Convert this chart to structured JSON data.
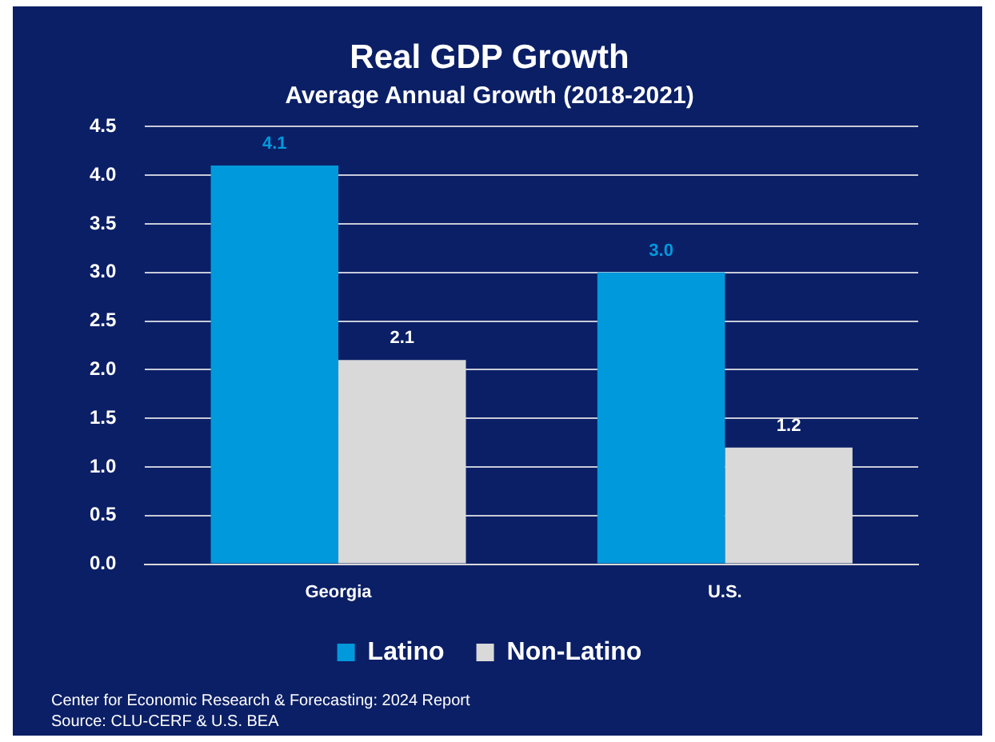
{
  "chart_data": {
    "type": "bar",
    "title": "Real GDP Growth",
    "subtitle": "Average Annual Growth (2018-2021)",
    "categories": [
      "Georgia",
      "U.S."
    ],
    "series": [
      {
        "name": "Latino",
        "color": "#0099dc",
        "values": [
          4.1,
          3.0
        ],
        "value_labels": [
          "4.1",
          "3.0"
        ]
      },
      {
        "name": "Non-Latino",
        "color": "#d9d9d9",
        "values": [
          2.1,
          1.2
        ],
        "value_labels": [
          "2.1",
          "1.2"
        ]
      }
    ],
    "ylim": [
      0,
      4.5
    ],
    "yticks": [
      {
        "value": 0,
        "label": "0.0"
      },
      {
        "value": 0.5,
        "label": "0.5"
      },
      {
        "value": 1,
        "label": "1.0"
      },
      {
        "value": 1.5,
        "label": "1.5"
      },
      {
        "value": 2,
        "label": "2.0"
      },
      {
        "value": 2.5,
        "label": "2.5"
      },
      {
        "value": 3,
        "label": "3.0"
      },
      {
        "value": 3.5,
        "label": "3.5"
      },
      {
        "value": 4,
        "label": "4.0"
      },
      {
        "value": 4.5,
        "label": "4.5"
      }
    ],
    "grid": "y",
    "legend": "bottom",
    "annotations": [
      "Center for Economic Research & Forecasting: 2024 Report",
      "Source: CLU-CERF & U.S. BEA"
    ]
  }
}
